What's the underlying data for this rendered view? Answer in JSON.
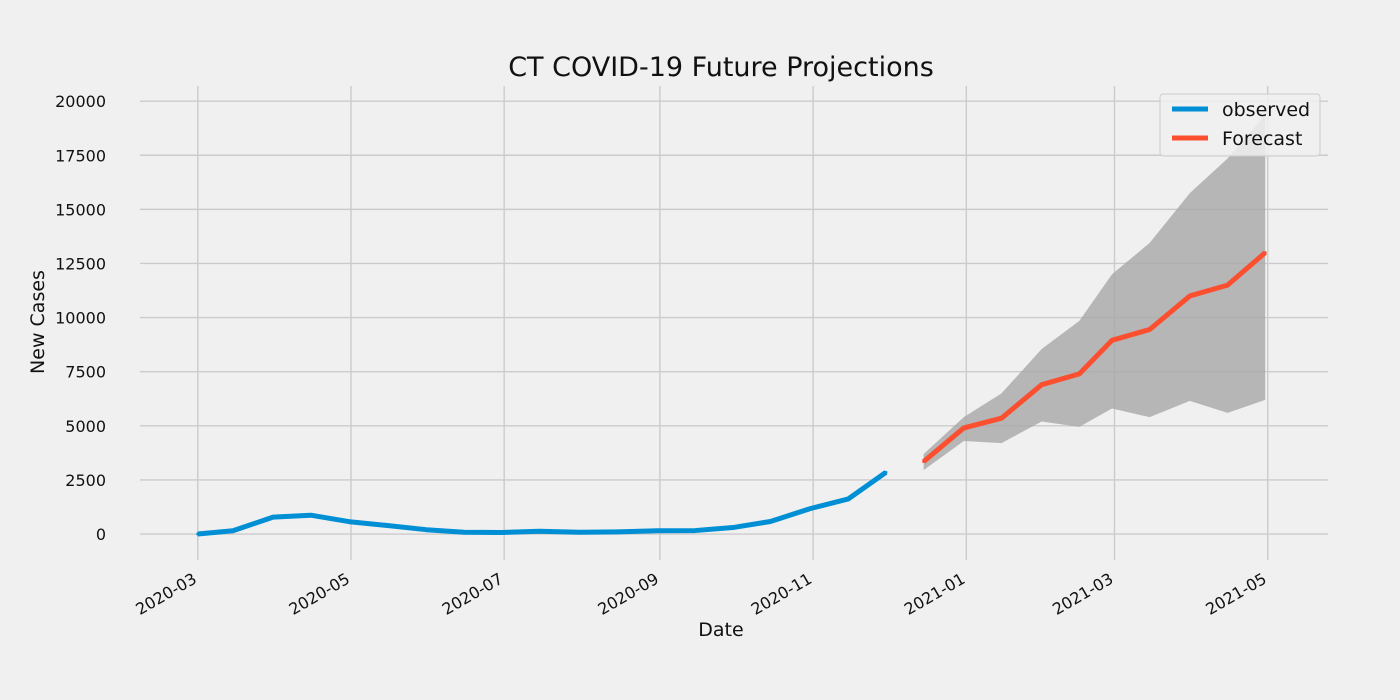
{
  "chart_data": {
    "type": "line",
    "title": "CT COVID-19 Future Projections",
    "xlabel": "Date",
    "ylabel": "New Cases",
    "xlim": [
      "2020-02-07",
      "2021-05-25"
    ],
    "ylim": [
      -1200,
      20700
    ],
    "x_ticks": [
      "2020-03-01",
      "2020-05-01",
      "2020-07-01",
      "2020-09-01",
      "2020-11-01",
      "2021-01-01",
      "2021-03-01",
      "2021-05-01"
    ],
    "x_tick_labels": [
      "2020-03",
      "2020-05",
      "2020-07",
      "2020-09",
      "2020-11",
      "2021-01",
      "2021-03",
      "2021-05"
    ],
    "y_ticks": [
      0,
      2500,
      5000,
      7500,
      10000,
      12500,
      15000,
      17500,
      20000
    ],
    "y_tick_labels": [
      "0",
      "2500",
      "5000",
      "7500",
      "10000",
      "12500",
      "15000",
      "17500",
      "20000"
    ],
    "grid": true,
    "legend_position": "top-right",
    "colors": {
      "observed": "#008fd5",
      "forecast": "#fc4f30",
      "confidence": "#a8a8a8",
      "background": "#f0f0f0"
    },
    "series": [
      {
        "name": "observed",
        "x": [
          "2020-03-01",
          "2020-03-15",
          "2020-03-31",
          "2020-04-15",
          "2020-05-01",
          "2020-05-15",
          "2020-05-31",
          "2020-06-15",
          "2020-06-30",
          "2020-07-15",
          "2020-07-31",
          "2020-08-15",
          "2020-08-31",
          "2020-09-15",
          "2020-09-30",
          "2020-10-15",
          "2020-10-31",
          "2020-11-15",
          "2020-11-30"
        ],
        "values": [
          0,
          150,
          780,
          870,
          560,
          400,
          200,
          80,
          70,
          130,
          80,
          100,
          150,
          160,
          300,
          580,
          1180,
          1620,
          2850
        ]
      },
      {
        "name": "Forecast",
        "x": [
          "2020-12-15",
          "2020-12-31",
          "2021-01-15",
          "2021-01-31",
          "2021-02-15",
          "2021-02-28",
          "2021-03-15",
          "2021-03-31",
          "2021-04-15",
          "2021-04-30"
        ],
        "values": [
          3350,
          4900,
          5350,
          6900,
          7400,
          8950,
          9450,
          11000,
          11500,
          13000
        ],
        "lower": [
          2950,
          4300,
          4200,
          5200,
          4950,
          5800,
          5400,
          6150,
          5600,
          6200
        ],
        "upper": [
          3700,
          5400,
          6500,
          8550,
          9850,
          12000,
          13450,
          15750,
          17350,
          19350
        ]
      }
    ]
  }
}
